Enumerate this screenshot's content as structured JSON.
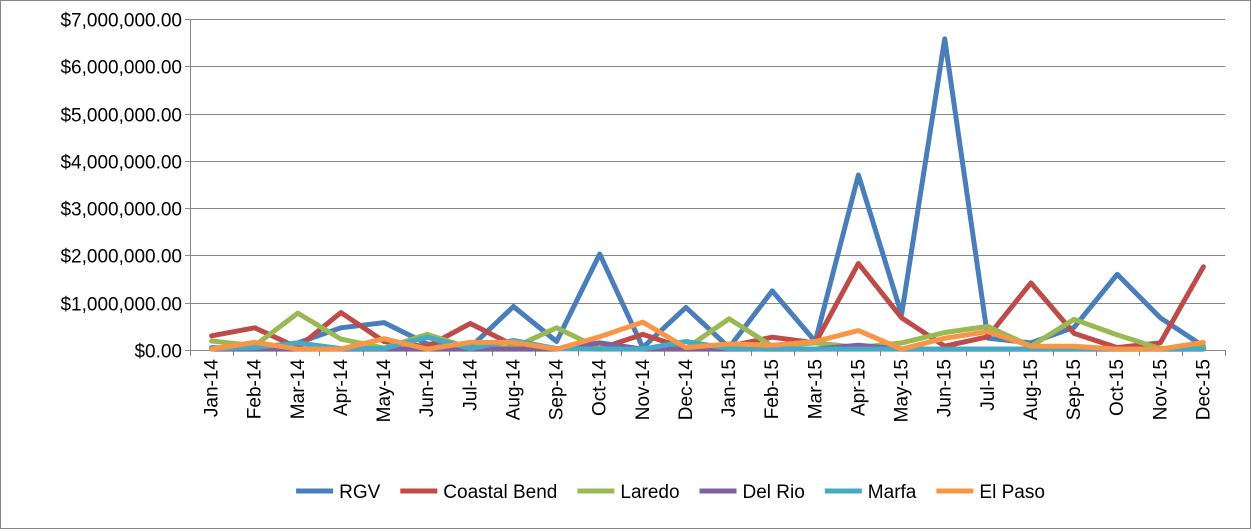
{
  "chart_data": {
    "type": "line",
    "title": "",
    "xlabel": "",
    "ylabel": "",
    "categories": [
      "Jan-14",
      "Feb-14",
      "Mar-14",
      "Apr-14",
      "May-14",
      "Jun-14",
      "Jul-14",
      "Aug-14",
      "Sep-14",
      "Oct-14",
      "Nov-14",
      "Dec-14",
      "Jan-15",
      "Feb-15",
      "Mar-15",
      "Apr-15",
      "May-15",
      "Jun-15",
      "Jul-15",
      "Aug-15",
      "Sep-15",
      "Oct-15",
      "Nov-15",
      "Dec-15"
    ],
    "ylim": [
      0,
      7000000
    ],
    "yticks": [
      0,
      1000000,
      2000000,
      3000000,
      4000000,
      5000000,
      6000000,
      7000000
    ],
    "ytick_labels": [
      "$0.00",
      "$1,000,000.00",
      "$2,000,000.00",
      "$3,000,000.00",
      "$4,000,000.00",
      "$5,000,000.00",
      "$6,000,000.00",
      "$7,000,000.00"
    ],
    "grid": true,
    "legend_position": "bottom",
    "series": [
      {
        "name": "RGV",
        "color": "#4a7ebb",
        "values": [
          50000,
          30000,
          150000,
          470000,
          580000,
          130000,
          50000,
          920000,
          180000,
          2030000,
          50000,
          900000,
          50000,
          1250000,
          180000,
          3700000,
          750000,
          6580000,
          250000,
          150000,
          480000,
          1600000,
          680000,
          80000
        ]
      },
      {
        "name": "Coastal Bend",
        "color": "#be4b48",
        "values": [
          300000,
          470000,
          50000,
          790000,
          180000,
          70000,
          560000,
          100000,
          30000,
          30000,
          330000,
          30000,
          80000,
          270000,
          150000,
          1830000,
          680000,
          80000,
          280000,
          1420000,
          350000,
          50000,
          150000,
          1760000
        ]
      },
      {
        "name": "Laredo",
        "color": "#98b954",
        "values": [
          190000,
          90000,
          780000,
          230000,
          40000,
          330000,
          40000,
          50000,
          470000,
          30000,
          30000,
          30000,
          660000,
          80000,
          150000,
          50000,
          150000,
          370000,
          500000,
          80000,
          650000,
          320000,
          30000,
          50000
        ]
      },
      {
        "name": "Del Rio",
        "color": "#7d60a0",
        "values": [
          20000,
          20000,
          20000,
          20000,
          20000,
          20000,
          20000,
          20000,
          20000,
          150000,
          20000,
          20000,
          20000,
          20000,
          20000,
          100000,
          20000,
          20000,
          20000,
          20000,
          20000,
          20000,
          20000,
          20000
        ]
      },
      {
        "name": "Marfa",
        "color": "#46aac5",
        "values": [
          30000,
          50000,
          150000,
          30000,
          30000,
          270000,
          30000,
          200000,
          30000,
          20000,
          20000,
          180000,
          30000,
          20000,
          20000,
          20000,
          20000,
          20000,
          20000,
          20000,
          20000,
          20000,
          20000,
          20000
        ]
      },
      {
        "name": "El Paso",
        "color": "#f79646",
        "values": [
          20000,
          160000,
          20000,
          20000,
          240000,
          20000,
          160000,
          160000,
          20000,
          280000,
          590000,
          50000,
          130000,
          100000,
          180000,
          410000,
          20000,
          250000,
          390000,
          80000,
          80000,
          20000,
          20000,
          160000
        ]
      }
    ]
  }
}
